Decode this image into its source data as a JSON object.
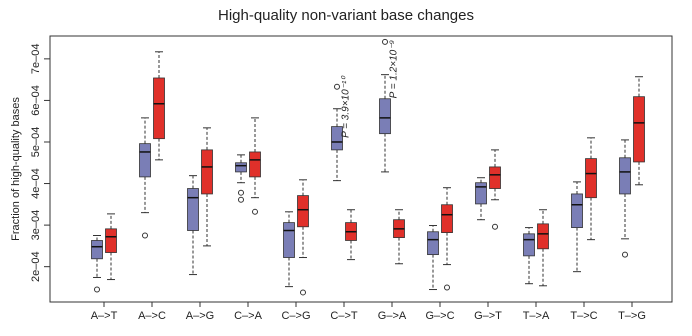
{
  "chart_data": {
    "type": "box",
    "title": "High-quality non-variant base changes",
    "y_label": "Fraction of high-quality bases",
    "categories": [
      "A–>T",
      "A–>C",
      "A–>G",
      "C–>A",
      "C–>G",
      "C–>T",
      "G–>A",
      "G–>C",
      "G–>T",
      "T–>A",
      "T–>C",
      "T–>G"
    ],
    "ylim": [
      0.000115,
      0.000755
    ],
    "yticks": [
      {
        "value": 0.0002,
        "label": "2e–04"
      },
      {
        "value": 0.0003,
        "label": "3e–04"
      },
      {
        "value": 0.0004,
        "label": "4e–04"
      },
      {
        "value": 0.0005,
        "label": "5e–04"
      },
      {
        "value": 0.0006,
        "label": "6e–04"
      },
      {
        "value": 0.0007,
        "label": "7e–04"
      }
    ],
    "series": [
      {
        "color": "#7a7eb6",
        "boxes": [
          {
            "whislo": 0.000174,
            "q1": 0.000219,
            "med": 0.000248,
            "q3": 0.000263,
            "whishi": 0.000275,
            "fliers": [
              0.000145
            ]
          },
          {
            "whislo": 0.00033,
            "q1": 0.000416,
            "med": 0.000476,
            "q3": 0.000496,
            "whishi": 0.000558,
            "fliers": [
              0.000275
            ]
          },
          {
            "whislo": 0.000181,
            "q1": 0.000287,
            "med": 0.000366,
            "q3": 0.000388,
            "whishi": 0.000419,
            "fliers": []
          },
          {
            "whislo": 0.000402,
            "q1": 0.000428,
            "med": 0.000443,
            "q3": 0.00045,
            "whishi": 0.000469,
            "fliers": [
              0.000378,
              0.000361
            ]
          },
          {
            "whislo": 0.000152,
            "q1": 0.000222,
            "med": 0.000287,
            "q3": 0.000306,
            "whishi": 0.000332,
            "fliers": []
          },
          {
            "whislo": 0.000407,
            "q1": 0.000481,
            "med": 0.0005,
            "q3": 0.000537,
            "whishi": 0.00058,
            "fliers": [
              0.000633
            ]
          },
          {
            "whislo": 0.000428,
            "q1": 0.00052,
            "med": 0.000558,
            "q3": 0.000604,
            "whishi": 0.000662,
            "fliers": [
              0.000741
            ]
          },
          {
            "whislo": 0.000145,
            "q1": 0.000229,
            "med": 0.000265,
            "q3": 0.000284,
            "whishi": 0.000299,
            "fliers": []
          },
          {
            "whislo": 0.000313,
            "q1": 0.000351,
            "med": 0.000392,
            "q3": 0.000402,
            "whishi": 0.000414,
            "fliers": []
          },
          {
            "whislo": 0.000159,
            "q1": 0.000226,
            "med": 0.000265,
            "q3": 0.000279,
            "whishi": 0.000294,
            "fliers": []
          },
          {
            "whislo": 0.000188,
            "q1": 0.000294,
            "med": 0.000349,
            "q3": 0.000375,
            "whishi": 0.000404,
            "fliers": []
          },
          {
            "whislo": 0.000267,
            "q1": 0.000375,
            "med": 0.000428,
            "q3": 0.000462,
            "whishi": 0.000505,
            "fliers": [
              0.000229
            ]
          }
        ]
      },
      {
        "color": "#e0302a",
        "boxes": [
          {
            "whislo": 0.000169,
            "q1": 0.000234,
            "med": 0.000272,
            "q3": 0.000291,
            "whishi": 0.000327,
            "fliers": []
          },
          {
            "whislo": 0.000457,
            "q1": 0.000508,
            "med": 0.000592,
            "q3": 0.000654,
            "whishi": 0.000717,
            "fliers": []
          },
          {
            "whislo": 0.00025,
            "q1": 0.000375,
            "med": 0.00044,
            "q3": 0.000481,
            "whishi": 0.000534,
            "fliers": []
          },
          {
            "whislo": 0.000366,
            "q1": 0.000416,
            "med": 0.000457,
            "q3": 0.000476,
            "whishi": 0.000558,
            "fliers": [
              0.000332
            ]
          },
          {
            "whislo": 0.000222,
            "q1": 0.000296,
            "med": 0.000337,
            "q3": 0.000371,
            "whishi": 0.000409,
            "fliers": [
              0.000138
            ]
          },
          {
            "whislo": 0.000217,
            "q1": 0.000263,
            "med": 0.000284,
            "q3": 0.000306,
            "whishi": 0.000337,
            "fliers": []
          },
          {
            "whislo": 0.000207,
            "q1": 0.00027,
            "med": 0.000291,
            "q3": 0.000313,
            "whishi": 0.000337,
            "fliers": []
          },
          {
            "whislo": 0.000205,
            "q1": 0.000282,
            "med": 0.000325,
            "q3": 0.000349,
            "whishi": 0.00039,
            "fliers": [
              0.00015
            ]
          },
          {
            "whislo": 0.000361,
            "q1": 0.000388,
            "med": 0.000421,
            "q3": 0.00044,
            "whishi": 0.000481,
            "fliers": [
              0.000296
            ]
          },
          {
            "whislo": 0.000154,
            "q1": 0.000243,
            "med": 0.000279,
            "q3": 0.000303,
            "whishi": 0.000337,
            "fliers": []
          },
          {
            "whislo": 0.000265,
            "q1": 0.000366,
            "med": 0.000424,
            "q3": 0.00046,
            "whishi": 0.00051,
            "fliers": []
          },
          {
            "whislo": 0.000397,
            "q1": 0.000452,
            "med": 0.000546,
            "q3": 0.000609,
            "whishi": 0.000657,
            "fliers": []
          }
        ]
      }
    ],
    "annotations": [
      {
        "text": "P = 3.9×10⁻¹⁰",
        "category": 5
      },
      {
        "text": "P = 1.2×10⁻⁹",
        "category": 6
      }
    ]
  }
}
